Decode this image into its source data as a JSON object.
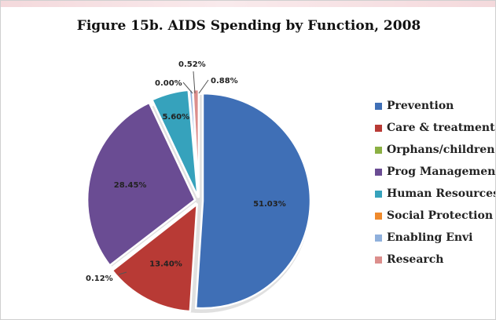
{
  "chart_data": {
    "type": "pie",
    "title": "Figure 15b. AIDS Spending by Function, 2008",
    "categories": [
      "Prevention",
      "Care & treatment",
      "Orphans/children",
      "Prog Management",
      "Human Resources",
      "Social Protection",
      "Enabling Envi",
      "Research"
    ],
    "values": [
      51.03,
      13.4,
      0.12,
      28.45,
      5.6,
      0.0,
      0.52,
      0.88
    ],
    "labels": [
      "51.03%",
      "13.40%",
      "0.12%",
      "28.45%",
      "5.60%",
      "0.00%",
      "0.52%",
      "0.88%"
    ],
    "colors": [
      "#3f6fb6",
      "#b83a35",
      "#8bb043",
      "#6a4c93",
      "#36a2bc",
      "#ef8a2c",
      "#8fb0dc",
      "#dc8e8c"
    ],
    "legend_position": "right"
  }
}
